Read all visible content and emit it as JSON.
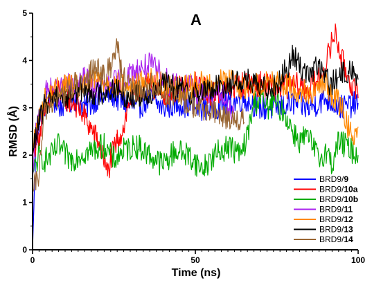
{
  "chart_data": {
    "type": "line",
    "title": "A",
    "xlabel": "Time (ns)",
    "ylabel": "RMSD (Å)",
    "xlim": [
      0,
      100
    ],
    "ylim": [
      0,
      5
    ],
    "x_ticks": [
      "0",
      "50",
      "100"
    ],
    "y_ticks": [
      "0",
      "1",
      "2",
      "3",
      "4",
      "5"
    ],
    "grid": false,
    "legend_position": "bottom-right",
    "series": [
      {
        "name": "BRD9/",
        "name_bold": "9",
        "color": "#0000ff",
        "x": [
          0,
          1,
          2,
          4,
          6,
          8,
          10,
          13,
          16,
          20,
          24,
          28,
          32,
          36,
          40,
          45,
          50,
          55,
          60,
          65,
          70,
          75,
          80,
          85,
          90,
          95,
          100
        ],
        "y": [
          0,
          2.2,
          2.7,
          3.1,
          3.2,
          3.0,
          3.1,
          3.2,
          3.0,
          3.2,
          3.3,
          3.1,
          3.0,
          3.2,
          3.0,
          3.1,
          3.0,
          3.0,
          3.1,
          3.2,
          3.0,
          3.0,
          3.1,
          3.0,
          3.2,
          3.0,
          3.1
        ]
      },
      {
        "name": "BRD9/",
        "name_bold": "10a",
        "color": "#ff0000",
        "x": [
          0,
          1,
          2,
          4,
          6,
          8,
          10,
          13,
          16,
          20,
          22,
          23,
          24,
          26,
          28,
          30,
          33,
          36,
          40,
          45,
          50,
          55,
          60,
          65,
          70,
          75,
          80,
          85,
          88,
          90,
          92,
          93,
          95,
          98,
          100
        ],
        "y": [
          2.0,
          2.3,
          2.4,
          2.9,
          3.3,
          3.4,
          3.2,
          3.1,
          2.8,
          2.3,
          1.9,
          1.6,
          1.9,
          2.3,
          2.6,
          3.2,
          3.4,
          3.5,
          3.3,
          3.4,
          3.5,
          3.3,
          3.4,
          3.5,
          3.5,
          3.4,
          3.5,
          3.4,
          3.6,
          3.9,
          4.4,
          4.6,
          4.0,
          3.5,
          3.2
        ]
      },
      {
        "name": "BRD9/",
        "name_bold": "10b",
        "color": "#00aa00",
        "x": [
          0,
          1,
          2,
          4,
          6,
          8,
          10,
          12,
          14,
          18,
          22,
          25,
          28,
          32,
          36,
          40,
          44,
          48,
          52,
          56,
          60,
          64,
          66,
          68,
          70,
          72,
          74,
          76,
          78,
          80,
          82,
          84,
          86,
          88,
          90,
          92,
          94,
          96,
          98,
          100
        ],
        "y": [
          1.6,
          1.8,
          2.0,
          1.9,
          2.0,
          2.2,
          2.0,
          1.9,
          2.0,
          2.1,
          2.2,
          1.9,
          2.1,
          2.2,
          2.0,
          1.8,
          2.1,
          2.0,
          1.7,
          2.0,
          2.2,
          2.0,
          2.4,
          3.1,
          3.2,
          3.0,
          3.1,
          3.0,
          2.8,
          2.5,
          2.3,
          2.4,
          2.2,
          1.9,
          2.1,
          1.8,
          2.3,
          2.2,
          2.1,
          2.0
        ]
      },
      {
        "name": "BRD9/",
        "name_bold": "11",
        "color": "#aa22ee",
        "x": [
          0,
          1,
          2,
          4,
          6,
          8,
          10,
          13,
          16,
          20,
          24,
          28,
          32,
          36,
          38,
          40,
          42,
          44,
          46,
          48,
          50,
          52,
          55,
          58,
          60,
          62
        ],
        "y": [
          1.5,
          2.4,
          2.8,
          3.3,
          3.4,
          3.3,
          3.5,
          3.4,
          3.6,
          3.4,
          3.5,
          3.6,
          3.8,
          3.9,
          3.8,
          3.7,
          3.5,
          3.6,
          3.4,
          3.5,
          3.3,
          3.4,
          3.2,
          3.3,
          3.0,
          2.9
        ]
      },
      {
        "name": "BRD9/",
        "name_bold": "12",
        "color": "#ff8800",
        "x": [
          0,
          1,
          2,
          4,
          6,
          8,
          10,
          15,
          20,
          25,
          30,
          35,
          40,
          45,
          50,
          55,
          60,
          65,
          70,
          75,
          80,
          85,
          90,
          95,
          98,
          100
        ],
        "y": [
          2.1,
          2.5,
          2.8,
          3.2,
          3.3,
          3.4,
          3.5,
          3.4,
          3.6,
          3.5,
          3.4,
          3.6,
          3.5,
          3.4,
          3.5,
          3.5,
          3.6,
          3.4,
          3.5,
          3.6,
          3.4,
          3.3,
          3.5,
          3.0,
          2.4,
          2.6
        ]
      },
      {
        "name": "BRD9/",
        "name_bold": "13",
        "color": "#000000",
        "x": [
          0,
          1,
          2,
          4,
          6,
          8,
          10,
          15,
          20,
          25,
          30,
          35,
          40,
          45,
          50,
          55,
          60,
          65,
          70,
          75,
          78,
          80,
          82,
          85,
          88,
          90,
          92,
          95,
          98,
          100
        ],
        "y": [
          2.0,
          2.4,
          2.7,
          3.1,
          3.2,
          3.3,
          3.2,
          3.4,
          3.3,
          3.4,
          3.2,
          3.3,
          3.5,
          3.4,
          3.3,
          3.4,
          3.5,
          3.6,
          3.4,
          3.5,
          3.8,
          4.1,
          3.9,
          3.7,
          3.9,
          3.6,
          3.5,
          3.7,
          3.8,
          3.6
        ]
      },
      {
        "name": "BRD9/",
        "name_bold": "14",
        "color": "#996633",
        "x": [
          0,
          1,
          2,
          3,
          4,
          6,
          8,
          10,
          13,
          16,
          18,
          20,
          22,
          24,
          26,
          27,
          28,
          30,
          33,
          36,
          40,
          45,
          50,
          55,
          60,
          65
        ],
        "y": [
          1.2,
          1.4,
          1.6,
          2.4,
          3.0,
          3.1,
          3.2,
          3.3,
          3.5,
          3.4,
          3.8,
          3.9,
          3.6,
          3.9,
          4.4,
          3.8,
          3.6,
          3.4,
          3.3,
          3.5,
          3.3,
          3.2,
          3.0,
          2.9,
          2.8,
          2.7
        ]
      }
    ]
  }
}
